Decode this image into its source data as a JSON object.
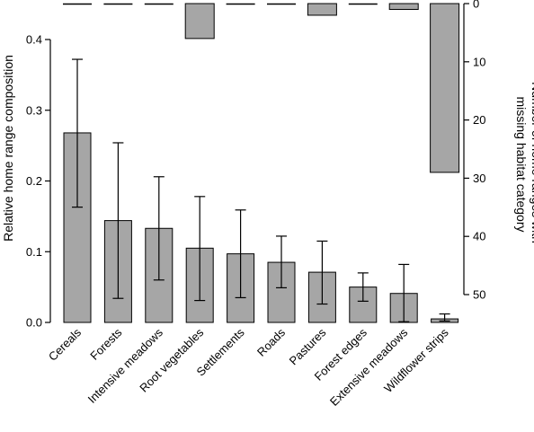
{
  "chart_data": {
    "type": "bar",
    "categories": [
      "Cereals",
      "Forests",
      "Intensive meadows",
      "Root vegetables",
      "Settlements",
      "Roads",
      "Pastures",
      "Forest edges",
      "Extensive meadows",
      "Wildflower strips"
    ],
    "series": [
      {
        "values": [
          0.268,
          0.144,
          0.133,
          0.105,
          0.097,
          0.085,
          0.071,
          0.05,
          0.041,
          0.005
        ],
        "error_low": [
          0.163,
          0.034,
          0.06,
          0.031,
          0.035,
          0.049,
          0.026,
          0.03,
          0.001,
          0.002
        ],
        "error_high": [
          0.372,
          0.254,
          0.206,
          0.178,
          0.159,
          0.122,
          0.115,
          0.07,
          0.082,
          0.012
        ],
        "color": "#a6a6a6"
      },
      {
        "values": [
          0,
          0,
          0,
          6,
          0,
          0,
          2,
          0,
          1,
          29
        ],
        "color": "#a6a6a6"
      }
    ],
    "ylabel": "Relative home range composition",
    "ylim": [
      0,
      0.4
    ],
    "yticks": [
      "0.0",
      "0.1",
      "0.2",
      "0.3",
      "0.4"
    ],
    "y2label": [
      "Number of home ranges with",
      "missing habitat category"
    ],
    "y2lim": [
      0,
      50
    ],
    "y2ticks": [
      "0",
      "10",
      "20",
      "30",
      "40",
      "50"
    ],
    "y2_inverted": true,
    "grid": false,
    "legend": "none"
  }
}
